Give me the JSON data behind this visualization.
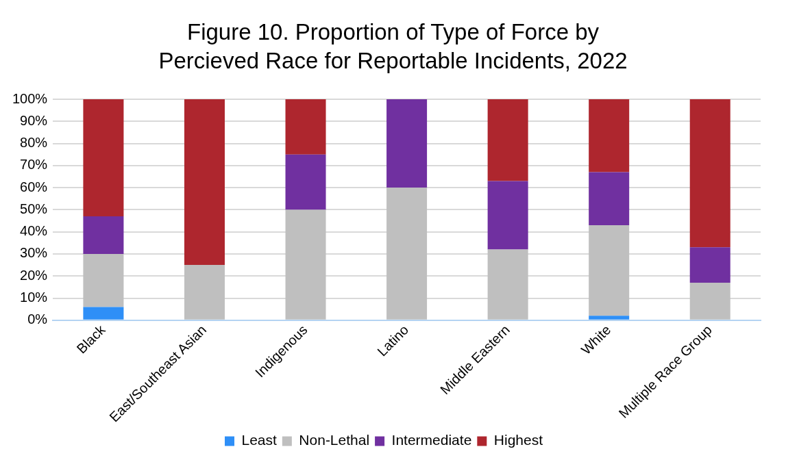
{
  "chart_data": {
    "type": "bar",
    "title": "Figure 10. Proportion of Type of Force by Percieved Race for Reportable Incidents, 2022",
    "categories": [
      "Black",
      "East/Southeast Asian",
      "Indigenous",
      "Latino",
      "Middle Eastern",
      "White",
      "Multiple Race Group"
    ],
    "stacked": true,
    "series": [
      {
        "name": "Least",
        "color": "#2e8ff7",
        "values": [
          6,
          0,
          0,
          0,
          0,
          2,
          0
        ]
      },
      {
        "name": "Non-Lethal",
        "color": "#bfbfbf",
        "values": [
          24,
          25,
          50,
          60,
          32,
          41,
          17
        ]
      },
      {
        "name": "Intermediate",
        "color": "#7030a0",
        "values": [
          17,
          0,
          25,
          40,
          31,
          24,
          16
        ]
      },
      {
        "name": "Highest",
        "color": "#ae262e",
        "values": [
          53,
          75,
          25,
          0,
          37,
          33,
          67
        ]
      }
    ],
    "ylim": [
      0,
      100
    ],
    "yticks": [
      {
        "value": 0,
        "label": "0%"
      },
      {
        "value": 10,
        "label": "10%"
      },
      {
        "value": 20,
        "label": "20%"
      },
      {
        "value": 30,
        "label": "30%"
      },
      {
        "value": 40,
        "label": "40%"
      },
      {
        "value": 50,
        "label": "50%"
      },
      {
        "value": 60,
        "label": "60%"
      },
      {
        "value": 70,
        "label": "70%"
      },
      {
        "value": 80,
        "label": "80%"
      },
      {
        "value": 90,
        "label": "90%"
      },
      {
        "value": 100,
        "label": "100%"
      }
    ],
    "grid": "y",
    "legend": "bottom"
  }
}
